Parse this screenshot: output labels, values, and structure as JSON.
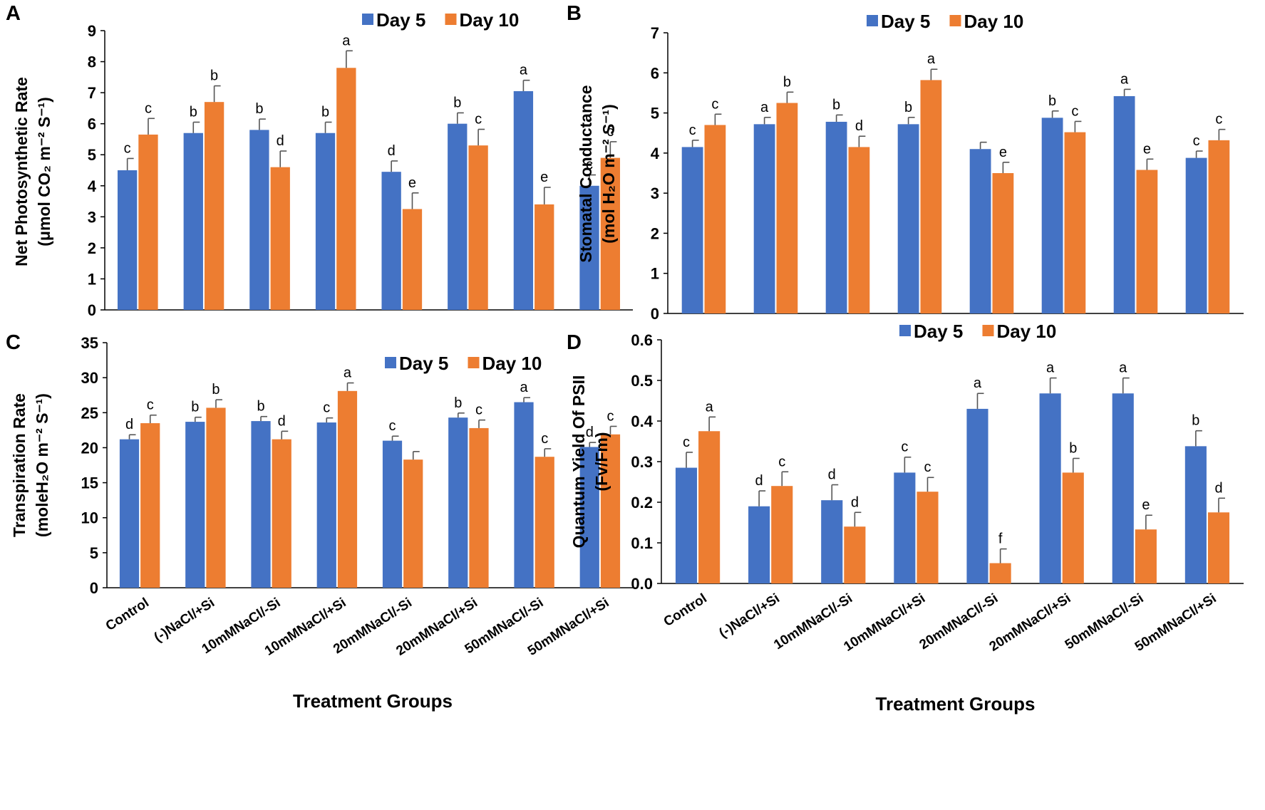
{
  "chart_data": [
    {
      "panel": "A",
      "type": "bar",
      "title": "",
      "ylabel_line1": "Net Photosynthetic Rate",
      "ylabel_line2": "(μmol CO₂ m⁻² S⁻¹)",
      "xlabel": "",
      "ylim": [
        0,
        9
      ],
      "ytick_step": 1,
      "ytick_decimals": 0,
      "legend_position": "top-right",
      "categories": [
        "Control",
        "(-)NaCl/+Si",
        "10mMNaCl/-Si",
        "10mMNaCl/+Si",
        "20mMNaCl/-Si",
        "20mMNaCl/+Si",
        "50mMNaCl/-Si",
        "50mMNaCl/+Si"
      ],
      "series": [
        {
          "name": "Day 5",
          "color": "#4472C4",
          "values": [
            4.5,
            5.7,
            5.8,
            5.7,
            4.45,
            6.0,
            7.05,
            4.0
          ],
          "errors": [
            0.38,
            0.35,
            0.35,
            0.35,
            0.35,
            0.35,
            0.35,
            0.35
          ],
          "labels": [
            "c",
            "b",
            "b",
            "b",
            "d",
            "b",
            "a",
            "c"
          ]
        },
        {
          "name": "Day 10",
          "color": "#ED7D31",
          "values": [
            5.65,
            6.7,
            4.6,
            7.8,
            3.25,
            5.3,
            3.4,
            4.9
          ],
          "errors": [
            0.52,
            0.52,
            0.52,
            0.55,
            0.52,
            0.52,
            0.55,
            0.52
          ],
          "labels": [
            "c",
            "b",
            "d",
            "a",
            "e",
            "c",
            "e",
            "c"
          ]
        }
      ]
    },
    {
      "panel": "B",
      "type": "bar",
      "title": "",
      "ylabel_line1": "Stomatal Conductance",
      "ylabel_line2": "(mol H₂O m⁻² S⁻¹)",
      "xlabel": "",
      "ylim": [
        0,
        7
      ],
      "ytick_step": 1,
      "ytick_decimals": 0,
      "legend_position": "top-right",
      "categories": [
        "Control",
        "(-)NaCl/+Si",
        "10mMNaCl/-Si",
        "10mMNaCl/+Si",
        "20mMNaCl/-Si",
        "20mMNaCl/+Si",
        "50mMNaCl/-Si",
        "50mMNaCl/+Si"
      ],
      "series": [
        {
          "name": "Day 5",
          "color": "#4472C4",
          "values": [
            4.15,
            4.72,
            4.78,
            4.72,
            4.1,
            4.88,
            5.42,
            3.88
          ],
          "errors": [
            0.17,
            0.17,
            0.17,
            0.17,
            0.17,
            0.17,
            0.17,
            0.17
          ],
          "labels": [
            "c",
            "a",
            "b",
            "b",
            "",
            "b",
            "a",
            "c"
          ]
        },
        {
          "name": "Day 10",
          "color": "#ED7D31",
          "values": [
            4.7,
            5.25,
            4.15,
            5.82,
            3.5,
            4.52,
            3.58,
            4.32
          ],
          "errors": [
            0.27,
            0.27,
            0.27,
            0.27,
            0.27,
            0.27,
            0.27,
            0.27
          ],
          "labels": [
            "c",
            "b",
            "d",
            "a",
            "e",
            "c",
            "e",
            "c"
          ]
        }
      ]
    },
    {
      "panel": "C",
      "type": "bar",
      "title": "",
      "ylabel_line1": "Transpiration Rate",
      "ylabel_line2": "(moleH₂O m⁻² S⁻¹)",
      "xlabel": "Treatment Groups",
      "ylim": [
        0,
        35
      ],
      "ytick_step": 5,
      "ytick_decimals": 0,
      "legend_position": "top-right",
      "categories": [
        "Control",
        "(-)NaCl/+Si",
        "10mMNaCl/-Si",
        "10mMNaCl/+Si",
        "20mMNaCl/-Si",
        "20mMNaCl/+Si",
        "50mMNaCl/-Si",
        "50mMNaCl/+Si"
      ],
      "series": [
        {
          "name": "Day 5",
          "color": "#4472C4",
          "values": [
            21.2,
            23.7,
            23.8,
            23.6,
            21.0,
            24.3,
            26.5,
            20.1
          ],
          "errors": [
            0.65,
            0.65,
            0.65,
            0.65,
            0.65,
            0.65,
            0.65,
            0.65
          ],
          "labels": [
            "d",
            "b",
            "b",
            "c",
            "c",
            "b",
            "a",
            "d"
          ]
        },
        {
          "name": "Day 10",
          "color": "#ED7D31",
          "values": [
            23.5,
            25.7,
            21.2,
            28.1,
            18.3,
            22.8,
            18.7,
            21.9
          ],
          "errors": [
            1.15,
            1.15,
            1.15,
            1.15,
            1.15,
            1.15,
            1.15,
            1.15
          ],
          "labels": [
            "c",
            "b",
            "d",
            "a",
            "",
            "c",
            "c",
            "c"
          ]
        }
      ]
    },
    {
      "panel": "D",
      "type": "bar",
      "title": "",
      "ylabel_line1": "Quantum Yield Of PSII",
      "ylabel_line2": "(Fv/Fm)",
      "xlabel": "Treatment Groups",
      "ylim": [
        0,
        0.6
      ],
      "ytick_step": 0.1,
      "ytick_decimals": 1,
      "legend_position": "top-right",
      "categories": [
        "Control",
        "(-)NaCl/+Si",
        "10mMNaCl/-Si",
        "10mMNaCl/+Si",
        "20mMNaCl/-Si",
        "20mMNaCl/+Si",
        "50mMNaCl/-Si",
        "50mMNaCl/+Si"
      ],
      "series": [
        {
          "name": "Day 5",
          "color": "#4472C4",
          "values": [
            0.285,
            0.19,
            0.205,
            0.273,
            0.43,
            0.468,
            0.468,
            0.338
          ],
          "errors": [
            0.038,
            0.038,
            0.038,
            0.038,
            0.038,
            0.038,
            0.038,
            0.038
          ],
          "labels": [
            "c",
            "d",
            "d",
            "c",
            "a",
            "a",
            "a",
            "b"
          ]
        },
        {
          "name": "Day 10",
          "color": "#ED7D31",
          "values": [
            0.375,
            0.24,
            0.14,
            0.226,
            0.05,
            0.273,
            0.133,
            0.175
          ],
          "errors": [
            0.035,
            0.035,
            0.035,
            0.035,
            0.035,
            0.035,
            0.035,
            0.035
          ],
          "labels": [
            "a",
            "c",
            "d",
            "c",
            "f",
            "b",
            "e",
            "d"
          ]
        }
      ]
    }
  ]
}
